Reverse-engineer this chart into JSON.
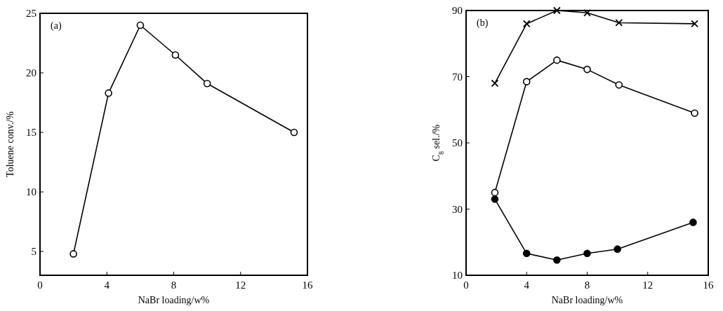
{
  "chart_data": [
    {
      "type": "line",
      "xlabel": "NaBr loading/w%",
      "ylabel": "Toluene conv./%",
      "annotations": [
        "(a)"
      ],
      "xlim": [
        0,
        16
      ],
      "xticks": [
        0,
        4,
        8,
        12,
        16
      ],
      "ylim": [
        3,
        25
      ],
      "yticks": [
        5,
        10,
        15,
        20,
        25
      ],
      "grid": false,
      "marker": "circle",
      "line_style": "solid",
      "series": [
        {
          "color": "#000000",
          "x": [
            2,
            4.1,
            6,
            8.1,
            10,
            15.2
          ],
          "values": [
            4.8,
            18.3,
            24,
            21.5,
            19.1,
            15
          ]
        }
      ]
    },
    {
      "type": "line",
      "xlabel": "NaBr loading/w%",
      "ylabel": "C$_{8}$ sel./%",
      "annotations": [
        "(b)"
      ],
      "xlim": [
        0,
        16
      ],
      "xticks": [
        0,
        4,
        8,
        12,
        16
      ],
      "ylim": [
        10,
        90
      ],
      "yticks": [
        10,
        30,
        50,
        70,
        90
      ],
      "grid": false,
      "line_style": "solid",
      "series": [
        {
          "color": "#000000",
          "marker": "cross",
          "x": [
            1.9,
            4,
            6,
            8,
            10.1,
            15.1
          ],
          "values": [
            68,
            86,
            90,
            89.3,
            86.3,
            86
          ]
        },
        {
          "color": "#000000",
          "marker": "circle",
          "x": [
            1.9,
            4,
            6,
            8,
            10.1,
            15.1
          ],
          "values": [
            35,
            68.5,
            75,
            72.2,
            67.5,
            59
          ]
        },
        {
          "color": "#000000",
          "marker": "circle",
          "x": [
            1.9,
            4,
            6,
            8,
            10,
            15
          ],
          "values": [
            33,
            16.6,
            14.6,
            16.6,
            17.9,
            26
          ]
        }
      ]
    }
  ]
}
